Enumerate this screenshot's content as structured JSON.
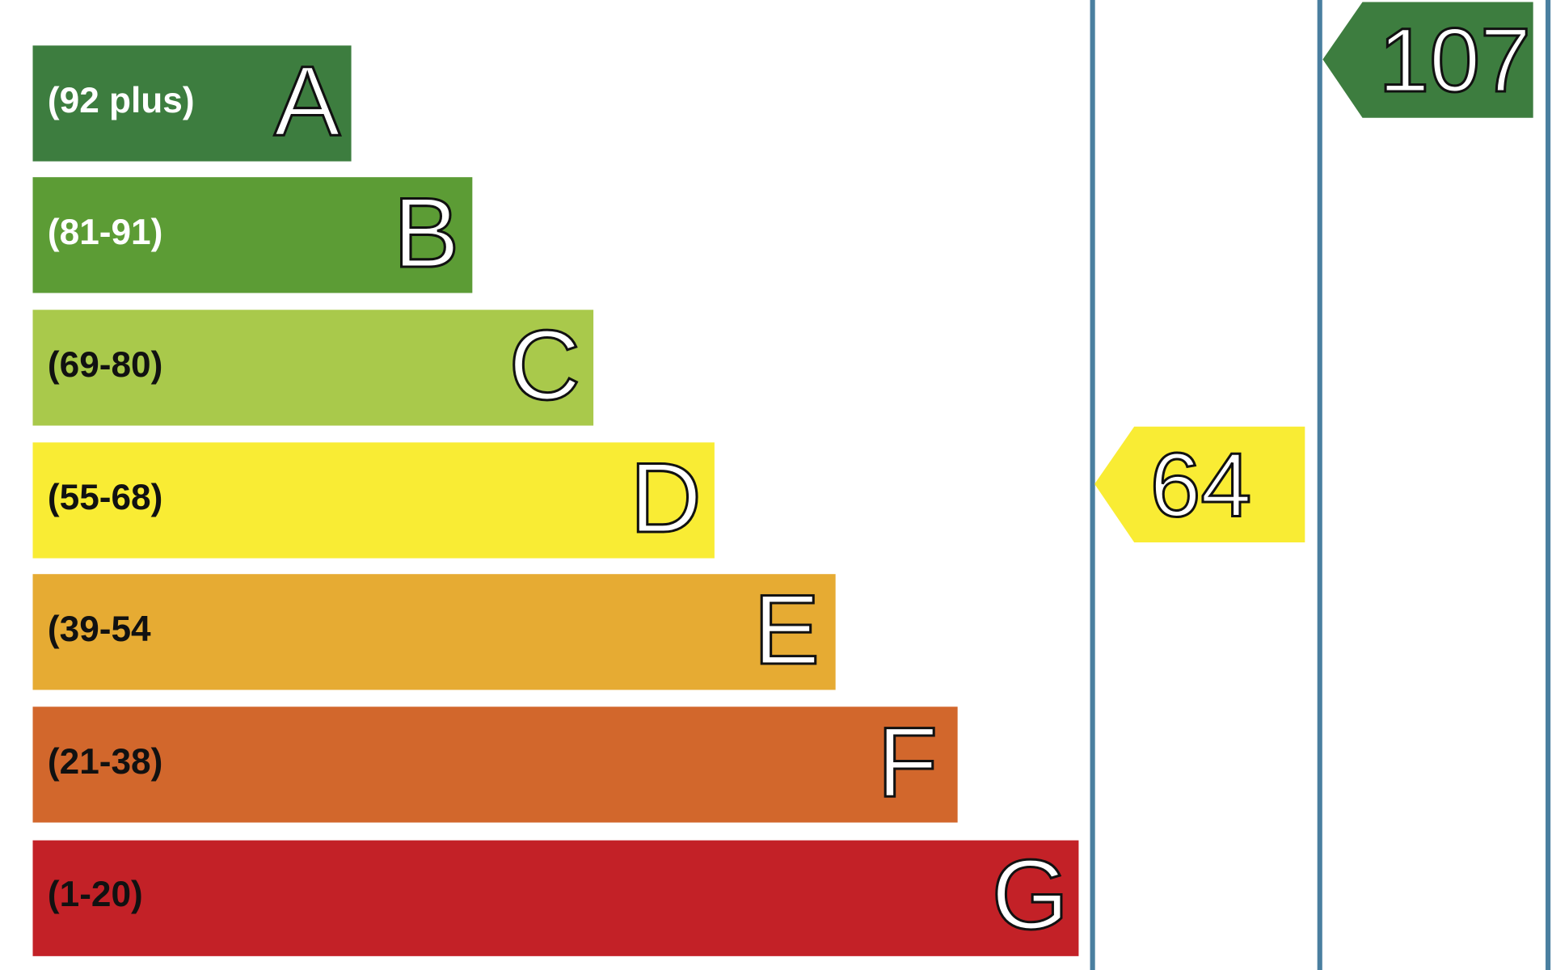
{
  "bands": [
    {
      "range": "(92 plus)",
      "letter": "A"
    },
    {
      "range": "(81-91)",
      "letter": "B"
    },
    {
      "range": "(69-80)",
      "letter": "C"
    },
    {
      "range": "(55-68)",
      "letter": "D"
    },
    {
      "range": "(39-54",
      "letter": "E"
    },
    {
      "range": "(21-38)",
      "letter": "F"
    },
    {
      "range": "(1-20)",
      "letter": "G"
    }
  ],
  "current": {
    "rating": "64"
  },
  "potential": {
    "rating": "107"
  }
}
